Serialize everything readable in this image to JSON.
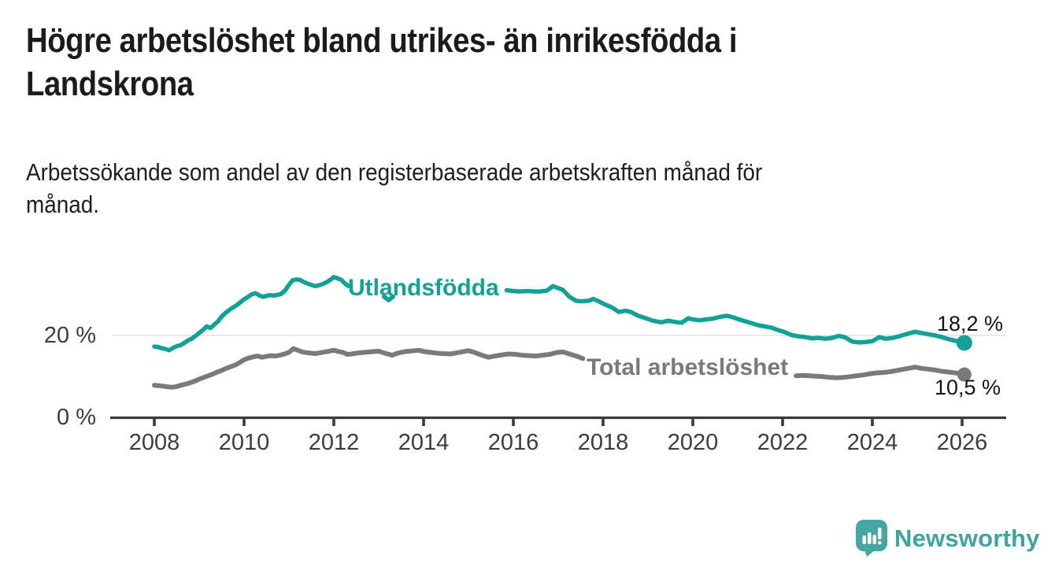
{
  "header": {
    "title_lines": [
      "Högre arbetslöshet bland utrikes- än inrikesfödda i",
      "Landskrona"
    ],
    "subtitle_lines": [
      "Arbetssökande som andel av den registerbaserade arbetskraften månad för",
      "månad."
    ]
  },
  "branding": {
    "logo_icon": "bar-chart-speech-bubble-icon",
    "logo_text": "Newsworthy",
    "logo_color": "#3da49e"
  },
  "chart_data": {
    "type": "line",
    "title": "Högre arbetslöshet bland utrikes- än inrikesfödda i Landskrona",
    "subtitle": "Arbetssökande som andel av den registerbaserade arbetskraften månad för månad.",
    "unit": "%",
    "grid": "single horizontal gridline at 20%",
    "legend_position": "inline-labels-on-lines",
    "x_axis": {
      "range": [
        2007.0,
        2027.0
      ],
      "ticks": [
        2008,
        2010,
        2012,
        2014,
        2016,
        2018,
        2020,
        2022,
        2024,
        2026
      ],
      "tick_labels": [
        "2008",
        "2010",
        "2012",
        "2014",
        "2016",
        "2018",
        "2020",
        "2022",
        "2024",
        "2026"
      ]
    },
    "y_axis": {
      "range": [
        0,
        44
      ],
      "ticks": [
        {
          "value": 0,
          "label": "0 %"
        },
        {
          "value": 20,
          "label": "20 %"
        }
      ]
    },
    "series": [
      {
        "name": "Utlandsfödda",
        "color": "#10a296",
        "stroke_width": 5.5,
        "dot_radius": 10,
        "end_value": 18.2,
        "end_label": "18,2 %",
        "segments": [
          [
            [
              2008.0,
              17.3
            ],
            [
              2008.08,
              17.2
            ],
            [
              2008.17,
              16.9
            ],
            [
              2008.25,
              16.7
            ],
            [
              2008.33,
              16.4
            ],
            [
              2008.42,
              17.0
            ],
            [
              2008.5,
              17.4
            ],
            [
              2008.58,
              17.6
            ],
            [
              2008.67,
              18.2
            ],
            [
              2008.75,
              18.8
            ],
            [
              2008.83,
              19.2
            ],
            [
              2008.92,
              19.9
            ],
            [
              2009.0,
              20.6
            ],
            [
              2009.08,
              21.3
            ],
            [
              2009.17,
              22.2
            ],
            [
              2009.25,
              21.8
            ],
            [
              2009.33,
              22.6
            ],
            [
              2009.42,
              23.4
            ],
            [
              2009.5,
              24.6
            ],
            [
              2009.58,
              25.4
            ],
            [
              2009.67,
              26.2
            ],
            [
              2009.75,
              26.8
            ],
            [
              2009.83,
              27.3
            ],
            [
              2009.92,
              28.1
            ],
            [
              2010.0,
              28.8
            ],
            [
              2010.08,
              29.3
            ],
            [
              2010.17,
              30.0
            ],
            [
              2010.25,
              30.3
            ],
            [
              2010.33,
              29.8
            ],
            [
              2010.42,
              29.4
            ],
            [
              2010.5,
              29.6
            ],
            [
              2010.58,
              29.8
            ],
            [
              2010.67,
              29.7
            ],
            [
              2010.75,
              29.9
            ],
            [
              2010.83,
              30.1
            ],
            [
              2010.92,
              31.0
            ],
            [
              2011.0,
              32.3
            ],
            [
              2011.08,
              33.4
            ],
            [
              2011.17,
              33.6
            ],
            [
              2011.25,
              33.5
            ],
            [
              2011.33,
              33.0
            ],
            [
              2011.42,
              32.6
            ],
            [
              2011.5,
              32.3
            ],
            [
              2011.58,
              32.0
            ],
            [
              2011.67,
              32.2
            ],
            [
              2011.75,
              32.5
            ],
            [
              2011.83,
              32.9
            ],
            [
              2011.92,
              33.5
            ],
            [
              2012.0,
              34.2
            ],
            [
              2012.08,
              33.9
            ],
            [
              2012.17,
              33.5
            ],
            [
              2012.25,
              32.6
            ],
            [
              2012.33,
              32.0
            ]
          ],
          [
            [
              2013.12,
              29.4
            ],
            [
              2013.22,
              28.6
            ],
            [
              2013.32,
              29.4
            ]
          ],
          [
            [
              2015.85,
              31.0
            ],
            [
              2016.0,
              30.8
            ],
            [
              2016.15,
              30.7
            ],
            [
              2016.3,
              30.8
            ],
            [
              2016.45,
              30.7
            ],
            [
              2016.6,
              30.7
            ],
            [
              2016.75,
              30.9
            ],
            [
              2016.88,
              32.0
            ],
            [
              2017.0,
              31.5
            ],
            [
              2017.1,
              31.1
            ],
            [
              2017.25,
              29.4
            ],
            [
              2017.4,
              28.4
            ],
            [
              2017.55,
              28.3
            ],
            [
              2017.7,
              28.5
            ],
            [
              2017.78,
              28.9
            ],
            [
              2017.9,
              28.3
            ],
            [
              2018.05,
              27.5
            ],
            [
              2018.2,
              26.8
            ],
            [
              2018.35,
              25.7
            ],
            [
              2018.5,
              26.0
            ],
            [
              2018.62,
              25.7
            ],
            [
              2018.78,
              24.8
            ],
            [
              2018.95,
              24.2
            ],
            [
              2019.1,
              23.6
            ],
            [
              2019.3,
              23.2
            ],
            [
              2019.45,
              23.6
            ],
            [
              2019.6,
              23.3
            ],
            [
              2019.75,
              23.1
            ],
            [
              2019.9,
              24.2
            ],
            [
              2020.0,
              23.9
            ],
            [
              2020.15,
              23.7
            ],
            [
              2020.3,
              23.9
            ],
            [
              2020.45,
              24.1
            ],
            [
              2020.6,
              24.5
            ],
            [
              2020.75,
              24.8
            ],
            [
              2020.9,
              24.4
            ],
            [
              2021.0,
              24.0
            ],
            [
              2021.15,
              23.5
            ],
            [
              2021.3,
              23.0
            ],
            [
              2021.45,
              22.5
            ],
            [
              2021.6,
              22.2
            ],
            [
              2021.75,
              21.9
            ],
            [
              2021.9,
              21.3
            ],
            [
              2022.05,
              20.8
            ],
            [
              2022.2,
              20.1
            ],
            [
              2022.35,
              19.8
            ],
            [
              2022.5,
              19.6
            ],
            [
              2022.65,
              19.3
            ],
            [
              2022.8,
              19.4
            ],
            [
              2022.95,
              19.2
            ],
            [
              2023.1,
              19.4
            ],
            [
              2023.25,
              19.9
            ],
            [
              2023.4,
              19.5
            ],
            [
              2023.55,
              18.5
            ],
            [
              2023.7,
              18.3
            ],
            [
              2023.85,
              18.4
            ],
            [
              2024.0,
              18.6
            ],
            [
              2024.15,
              19.6
            ],
            [
              2024.3,
              19.2
            ],
            [
              2024.45,
              19.4
            ],
            [
              2024.6,
              19.8
            ],
            [
              2024.75,
              20.3
            ],
            [
              2024.95,
              20.9
            ],
            [
              2025.1,
              20.6
            ],
            [
              2025.25,
              20.3
            ],
            [
              2025.4,
              20.0
            ],
            [
              2025.55,
              19.6
            ],
            [
              2025.7,
              19.1
            ],
            [
              2025.85,
              18.7
            ],
            [
              2026.05,
              18.2
            ]
          ]
        ]
      },
      {
        "name": "Total arbetslöshet",
        "color": "#797a7d",
        "stroke_width": 6,
        "dot_radius": 9,
        "end_value": 10.5,
        "end_label": "10,5 %",
        "segments": [
          [
            [
              2008.0,
              7.9
            ],
            [
              2008.1,
              7.8
            ],
            [
              2008.2,
              7.7
            ],
            [
              2008.3,
              7.5
            ],
            [
              2008.4,
              7.4
            ],
            [
              2008.5,
              7.6
            ],
            [
              2008.6,
              7.9
            ],
            [
              2008.7,
              8.2
            ],
            [
              2008.8,
              8.5
            ],
            [
              2008.9,
              8.9
            ],
            [
              2009.0,
              9.4
            ],
            [
              2009.1,
              9.8
            ],
            [
              2009.2,
              10.2
            ],
            [
              2009.3,
              10.6
            ],
            [
              2009.4,
              11.1
            ],
            [
              2009.5,
              11.5
            ],
            [
              2009.6,
              12.0
            ],
            [
              2009.7,
              12.4
            ],
            [
              2009.8,
              12.8
            ],
            [
              2009.9,
              13.4
            ],
            [
              2010.0,
              14.1
            ],
            [
              2010.1,
              14.5
            ],
            [
              2010.2,
              14.8
            ],
            [
              2010.3,
              15.0
            ],
            [
              2010.4,
              14.7
            ],
            [
              2010.5,
              14.9
            ],
            [
              2010.6,
              15.1
            ],
            [
              2010.7,
              15.0
            ],
            [
              2010.8,
              15.2
            ],
            [
              2010.9,
              15.5
            ],
            [
              2011.0,
              15.9
            ],
            [
              2011.1,
              16.8
            ],
            [
              2011.2,
              16.4
            ],
            [
              2011.3,
              16.0
            ],
            [
              2011.4,
              15.8
            ],
            [
              2011.5,
              15.7
            ],
            [
              2011.6,
              15.6
            ],
            [
              2011.7,
              15.8
            ],
            [
              2011.8,
              16.0
            ],
            [
              2011.9,
              16.2
            ],
            [
              2012.0,
              16.4
            ],
            [
              2012.1,
              16.1
            ],
            [
              2012.2,
              15.9
            ],
            [
              2012.3,
              15.4
            ],
            [
              2012.4,
              15.5
            ],
            [
              2012.5,
              15.7
            ],
            [
              2012.6,
              15.8
            ],
            [
              2012.7,
              15.9
            ],
            [
              2012.8,
              16.0
            ],
            [
              2012.9,
              16.1
            ],
            [
              2013.0,
              16.2
            ],
            [
              2013.1,
              15.8
            ],
            [
              2013.2,
              15.5
            ],
            [
              2013.3,
              15.2
            ],
            [
              2013.4,
              15.6
            ],
            [
              2013.5,
              15.9
            ],
            [
              2013.6,
              16.1
            ],
            [
              2013.7,
              16.2
            ],
            [
              2013.8,
              16.3
            ],
            [
              2013.9,
              16.4
            ],
            [
              2014.0,
              16.1
            ],
            [
              2014.2,
              15.8
            ],
            [
              2014.4,
              15.6
            ],
            [
              2014.6,
              15.5
            ],
            [
              2014.8,
              15.9
            ],
            [
              2015.0,
              16.3
            ],
            [
              2015.15,
              15.8
            ],
            [
              2015.3,
              15.2
            ],
            [
              2015.45,
              14.7
            ],
            [
              2015.6,
              15.0
            ],
            [
              2015.75,
              15.3
            ],
            [
              2015.9,
              15.5
            ],
            [
              2016.05,
              15.4
            ],
            [
              2016.2,
              15.2
            ],
            [
              2016.35,
              15.1
            ],
            [
              2016.5,
              15.0
            ],
            [
              2016.65,
              15.2
            ],
            [
              2016.8,
              15.4
            ],
            [
              2016.95,
              15.8
            ],
            [
              2017.1,
              16.0
            ],
            [
              2017.25,
              15.5
            ],
            [
              2017.4,
              15.0
            ],
            [
              2017.55,
              14.4
            ]
          ],
          [
            [
              2022.3,
              10.2
            ],
            [
              2022.45,
              10.3
            ],
            [
              2022.6,
              10.2
            ],
            [
              2022.75,
              10.1
            ],
            [
              2022.9,
              10.0
            ],
            [
              2023.05,
              9.8
            ],
            [
              2023.2,
              9.7
            ],
            [
              2023.35,
              9.8
            ],
            [
              2023.5,
              10.0
            ],
            [
              2023.65,
              10.2
            ],
            [
              2023.8,
              10.4
            ],
            [
              2023.95,
              10.7
            ],
            [
              2024.1,
              10.9
            ],
            [
              2024.25,
              11.0
            ],
            [
              2024.4,
              11.2
            ],
            [
              2024.55,
              11.5
            ],
            [
              2024.7,
              11.8
            ],
            [
              2024.85,
              12.1
            ],
            [
              2024.95,
              12.3
            ],
            [
              2025.1,
              12.0
            ],
            [
              2025.25,
              11.8
            ],
            [
              2025.4,
              11.6
            ],
            [
              2025.55,
              11.3
            ],
            [
              2025.7,
              11.1
            ],
            [
              2025.85,
              10.9
            ],
            [
              2026.05,
              10.5
            ]
          ]
        ]
      }
    ],
    "style": {
      "axis_color": "#3a3a3a",
      "gridline_color": "#e0e0e0",
      "tick_label_color": "#3d3d3d"
    }
  }
}
